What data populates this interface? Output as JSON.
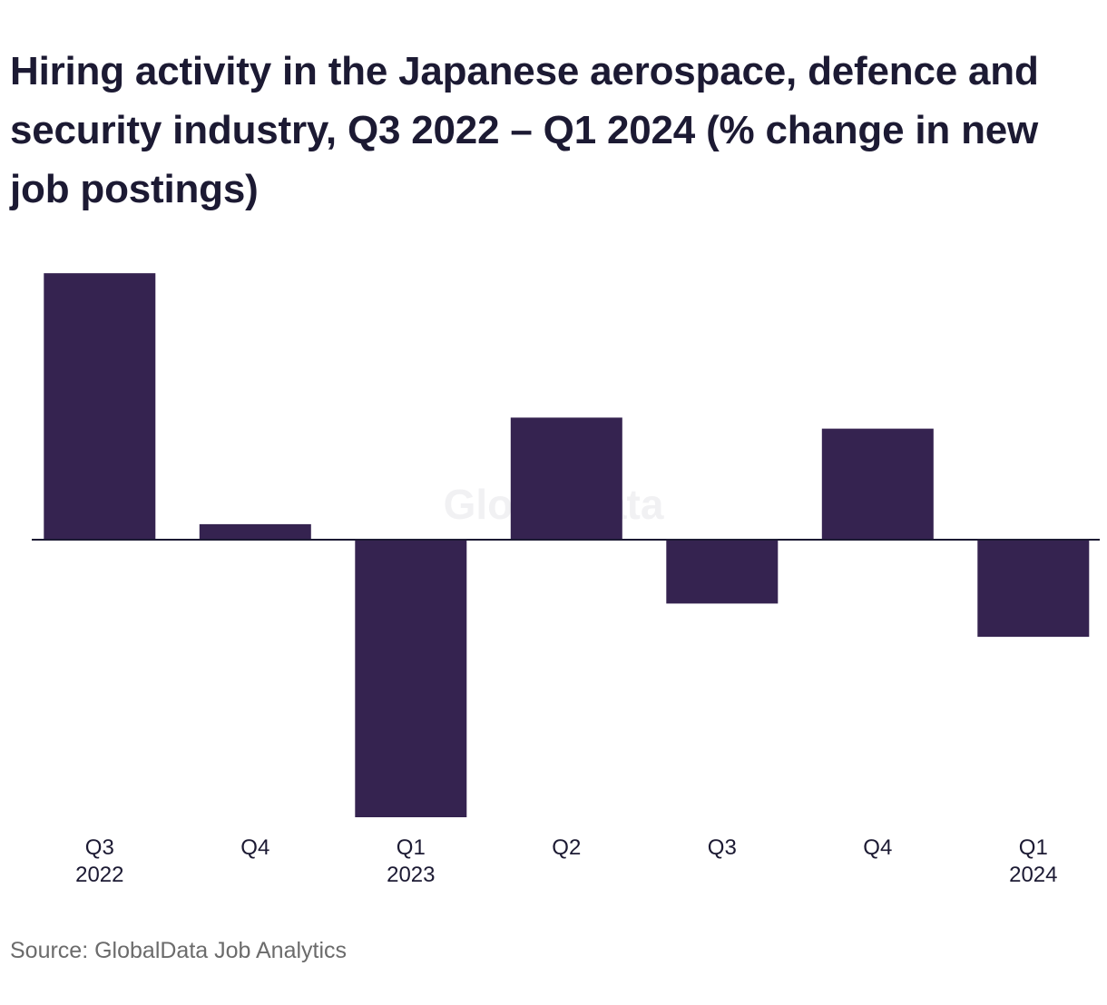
{
  "chart_data": {
    "type": "bar",
    "title": "Hiring activity in the Japanese aerospace, defence and security industry, Q3 2022 – Q1 2024 (% change in new job postings)",
    "categories": [
      [
        "Q3",
        "2022"
      ],
      [
        "Q4",
        ""
      ],
      [
        "Q1",
        "2023"
      ],
      [
        "Q2",
        ""
      ],
      [
        "Q3",
        ""
      ],
      [
        "Q4",
        ""
      ],
      [
        "Q1",
        "2024"
      ]
    ],
    "series": [
      {
        "values": [
          48,
          2.8,
          -50,
          22,
          -11.5,
          20,
          -17.5
        ]
      }
    ],
    "ylim": [
      -55,
      55
    ],
    "xlabel": "",
    "ylabel": "",
    "grid": false,
    "zero_baseline": true,
    "bar_color": "#352350",
    "watermark": "GlobalData",
    "source": "Source: GlobalData Job Analytics"
  }
}
